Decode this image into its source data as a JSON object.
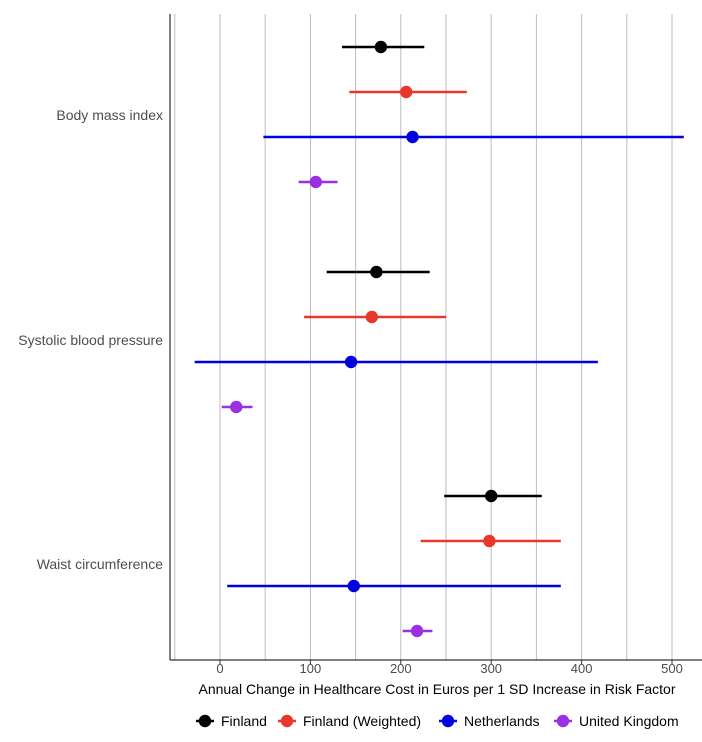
{
  "chart_data": {
    "type": "scatter",
    "subtype": "forest-plot",
    "title": "",
    "xlabel": "Annual Change in Healthcare Cost in Euros per 1 SD Increase in Risk Factor",
    "ylabel": "",
    "xlim": [
      -50,
      535
    ],
    "xticks": [
      0,
      100,
      200,
      300,
      400,
      500
    ],
    "grid": true,
    "legend_position": "bottom",
    "categories": [
      "Body mass index",
      "Systolic blood pressure",
      "Waist circumference"
    ],
    "series": [
      {
        "name": "Finland",
        "color": "#000000",
        "estimates": [
          178,
          173,
          300
        ],
        "lower": [
          135,
          118,
          248
        ],
        "upper": [
          226,
          232,
          356
        ]
      },
      {
        "name": "Finland (Weighted)",
        "color": "#e8382c",
        "estimates": [
          206,
          168,
          298
        ],
        "lower": [
          143,
          93,
          222
        ],
        "upper": [
          273,
          250,
          377
        ]
      },
      {
        "name": "Netherlands",
        "color": "#0000e0",
        "estimates": [
          213,
          145,
          148
        ],
        "lower": [
          48,
          -28,
          8
        ],
        "upper": [
          513,
          418,
          377
        ]
      },
      {
        "name": "United Kingdom",
        "color": "#9b30e0",
        "estimates": [
          106,
          18,
          218
        ],
        "lower": [
          87,
          2,
          202
        ],
        "upper": [
          130,
          36,
          235
        ]
      }
    ]
  }
}
